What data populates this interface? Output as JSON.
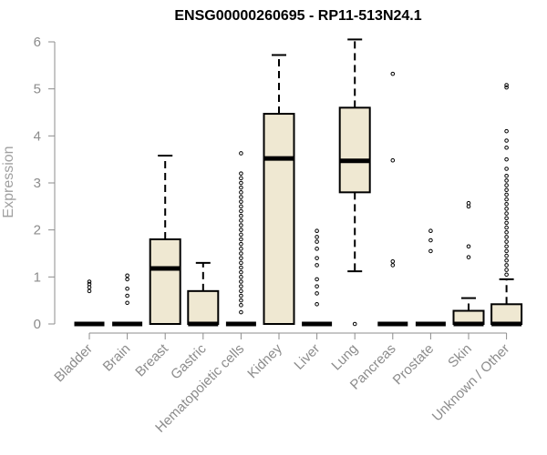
{
  "chart_data": {
    "type": "boxplot",
    "title": "ENSG00000260695 - RP11-513N24.1",
    "xlabel": "",
    "ylabel": "Expression",
    "ylim": [
      0,
      6
    ],
    "yticks": [
      0,
      1,
      2,
      3,
      4,
      5,
      6
    ],
    "box_fill": "#efe8d2",
    "line_color": "#000000",
    "axis_color": "#8c8c8c",
    "categories": [
      "Bladder",
      "Brain",
      "Breast",
      "Gastric",
      "Hematopoietic cells",
      "Kidney",
      "Liver",
      "Lung",
      "Pancreas",
      "Prostate",
      "Skin",
      "Unknown / Other"
    ],
    "boxes": [
      {
        "name": "Bladder",
        "q1": 0,
        "median": 0,
        "q3": 0,
        "whisker_low": 0,
        "whisker_high": 0,
        "outliers": [
          0.7,
          0.78,
          0.85,
          0.9
        ]
      },
      {
        "name": "Brain",
        "q1": 0,
        "median": 0,
        "q3": 0,
        "whisker_low": 0,
        "whisker_high": 0,
        "outliers": [
          0.45,
          0.6,
          0.75,
          0.95,
          1.03
        ]
      },
      {
        "name": "Breast",
        "q1": 0,
        "median": 1.18,
        "q3": 1.8,
        "whisker_low": 0,
        "whisker_high": 3.58,
        "outliers": []
      },
      {
        "name": "Gastric",
        "q1": 0,
        "median": 0,
        "q3": 0.7,
        "whisker_low": 0,
        "whisker_high": 1.3,
        "outliers": []
      },
      {
        "name": "Hematopoietic cells",
        "q1": 0,
        "median": 0,
        "q3": 0,
        "whisker_low": 0,
        "whisker_high": 0,
        "outliers": [
          0.25,
          0.4,
          0.5,
          0.6,
          0.7,
          0.8,
          0.9,
          1.0,
          1.1,
          1.2,
          1.3,
          1.4,
          1.5,
          1.6,
          1.7,
          1.8,
          1.9,
          2.0,
          2.1,
          2.2,
          2.3,
          2.4,
          2.5,
          2.6,
          2.7,
          2.8,
          2.9,
          3.0,
          3.1,
          3.2,
          3.63
        ]
      },
      {
        "name": "Kidney",
        "q1": 0,
        "median": 3.52,
        "q3": 4.47,
        "whisker_low": 0,
        "whisker_high": 5.72,
        "outliers": []
      },
      {
        "name": "Liver",
        "q1": 0,
        "median": 0,
        "q3": 0,
        "whisker_low": 0,
        "whisker_high": 0,
        "outliers": [
          0.42,
          0.65,
          0.8,
          0.95,
          1.25,
          1.4,
          1.6,
          1.75,
          1.85,
          1.98
        ]
      },
      {
        "name": "Lung",
        "q1": 2.8,
        "median": 3.47,
        "q3": 4.6,
        "whisker_low": 1.12,
        "whisker_high": 6.05,
        "outliers": [
          0
        ]
      },
      {
        "name": "Pancreas",
        "q1": 0,
        "median": 0,
        "q3": 0,
        "whisker_low": 0,
        "whisker_high": 0,
        "outliers": [
          1.25,
          1.33,
          3.48,
          5.32
        ]
      },
      {
        "name": "Prostate",
        "q1": 0,
        "median": 0,
        "q3": 0,
        "whisker_low": 0,
        "whisker_high": 0,
        "outliers": [
          1.55,
          1.78,
          1.98
        ]
      },
      {
        "name": "Skin",
        "q1": 0,
        "median": 0,
        "q3": 0.28,
        "whisker_low": 0,
        "whisker_high": 0.55,
        "outliers": [
          1.42,
          1.65,
          2.5,
          2.57
        ]
      },
      {
        "name": "Unknown / Other",
        "q1": 0,
        "median": 0,
        "q3": 0.42,
        "whisker_low": 0,
        "whisker_high": 0.95,
        "outliers": [
          1.05,
          1.15,
          1.25,
          1.35,
          1.45,
          1.55,
          1.65,
          1.75,
          1.85,
          1.95,
          2.05,
          2.15,
          2.25,
          2.35,
          2.45,
          2.55,
          2.65,
          2.75,
          2.85,
          2.95,
          3.05,
          3.15,
          3.3,
          3.5,
          3.75,
          3.9,
          4.1,
          5.03,
          5.08
        ]
      }
    ]
  }
}
